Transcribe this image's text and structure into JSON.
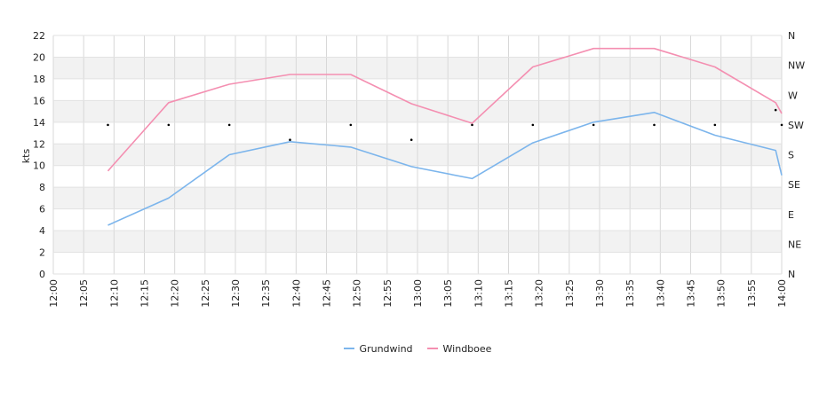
{
  "chart_data": {
    "type": "line",
    "title": "",
    "xlabel": "",
    "ylabel": "kts",
    "y2label": "",
    "xlim": [
      "12:00",
      "14:00"
    ],
    "ylim": [
      0,
      22
    ],
    "grid": true,
    "legend_position": "bottom",
    "x_ticks": [
      "12:00",
      "12:05",
      "12:10",
      "12:15",
      "12:20",
      "12:25",
      "12:30",
      "12:35",
      "12:40",
      "12:45",
      "12:50",
      "12:55",
      "13:00",
      "13:05",
      "13:10",
      "13:15",
      "13:20",
      "13:25",
      "13:30",
      "13:35",
      "13:40",
      "13:45",
      "13:50",
      "13:55",
      "14:00"
    ],
    "y_ticks": [
      0,
      2,
      4,
      6,
      8,
      10,
      12,
      14,
      16,
      18,
      20,
      22
    ],
    "direction_ticks": [
      "N",
      "NE",
      "E",
      "SE",
      "S",
      "SW",
      "W",
      "NW",
      "N"
    ],
    "series": [
      {
        "name": "Grundwind",
        "color": "#7cb5ec",
        "x": [
          "12:09",
          "12:19",
          "12:29",
          "12:39",
          "12:49",
          "12:59",
          "13:09",
          "13:19",
          "13:29",
          "13:39",
          "13:49",
          "13:59",
          "14:00"
        ],
        "values": [
          4.5,
          7.0,
          11.0,
          12.2,
          11.7,
          9.9,
          8.8,
          12.1,
          14.0,
          14.9,
          12.8,
          11.4,
          9.1
        ]
      },
      {
        "name": "Windboee",
        "color": "#f48fb1",
        "x": [
          "12:09",
          "12:19",
          "12:29",
          "12:39",
          "12:49",
          "12:59",
          "13:09",
          "13:19",
          "13:29",
          "13:39",
          "13:49",
          "13:59",
          "14:00"
        ],
        "values": [
          9.5,
          15.8,
          17.5,
          18.4,
          18.4,
          15.7,
          13.9,
          19.1,
          20.8,
          20.8,
          19.1,
          15.8,
          14.8
        ]
      }
    ],
    "direction_points": {
      "x": [
        "12:09",
        "12:19",
        "12:29",
        "12:39",
        "12:49",
        "12:59",
        "13:09",
        "13:19",
        "13:29",
        "13:39",
        "13:49",
        "13:59",
        "14:00"
      ],
      "degrees": [
        225,
        225,
        225,
        202.5,
        225,
        202.5,
        225,
        225,
        225,
        225,
        225,
        247.5,
        225
      ]
    }
  }
}
